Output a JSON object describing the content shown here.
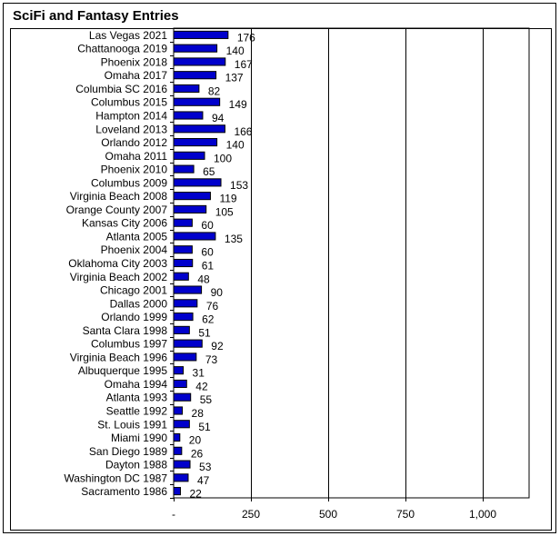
{
  "chart_data": {
    "type": "bar",
    "orientation": "horizontal",
    "title": "SciFi and Fantasy Entries",
    "xlabel": "",
    "ylabel": "",
    "xlim": [
      0,
      1150
    ],
    "x_ticks": [
      0,
      250,
      500,
      750,
      1000
    ],
    "x_tick_labels": [
      "-",
      "250",
      "500",
      "750",
      "1,000"
    ],
    "grid": "vertical",
    "legend": "none",
    "bar_color": "#0000CC",
    "categories": [
      "Las Vegas 2021",
      "Chattanooga 2019",
      "Phoenix 2018",
      "Omaha 2017",
      "Columbia SC 2016",
      "Columbus 2015",
      "Hampton 2014",
      "Loveland 2013",
      "Orlando 2012",
      "Omaha 2011",
      "Phoenix 2010",
      "Columbus 2009",
      "Virginia Beach 2008",
      "Orange County 2007",
      "Kansas City 2006",
      "Atlanta 2005",
      "Phoenix 2004",
      "Oklahoma City 2003",
      "Virginia Beach 2002",
      "Chicago 2001",
      "Dallas 2000",
      "Orlando 1999",
      "Santa Clara 1998",
      "Columbus 1997",
      "Virginia Beach 1996",
      "Albuquerque 1995",
      "Omaha 1994",
      "Atlanta 1993",
      "Seattle 1992",
      "St. Louis 1991",
      "Miami 1990",
      "San Diego 1989",
      "Dayton 1988",
      "Washington DC 1987",
      "Sacramento 1986"
    ],
    "values": [
      176,
      140,
      167,
      137,
      82,
      149,
      94,
      166,
      140,
      100,
      65,
      153,
      119,
      105,
      60,
      135,
      60,
      61,
      48,
      90,
      76,
      62,
      51,
      92,
      73,
      31,
      42,
      55,
      28,
      51,
      20,
      26,
      53,
      47,
      22
    ]
  }
}
